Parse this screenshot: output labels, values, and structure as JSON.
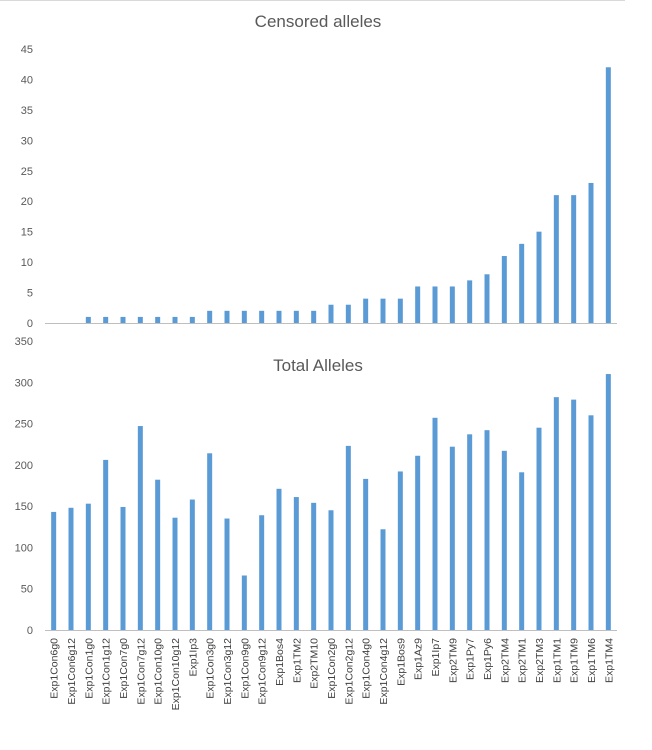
{
  "colors": {
    "bar": "#5b9bd5",
    "grid": "#d9d9d9",
    "axis": "#bfbfbf"
  },
  "chart_data": [
    {
      "type": "bar",
      "title": "Censored alleles",
      "xlabel": "",
      "ylabel": "",
      "ylim": [
        0,
        45
      ],
      "yticks": [
        0,
        5,
        10,
        15,
        20,
        25,
        30,
        35,
        40,
        45
      ],
      "grid": false,
      "legend": "none",
      "categories": [
        "Exp1Con6g0",
        "Exp1Con6g12",
        "Exp1Con1g0",
        "Exp1Con1g12",
        "Exp1Con7g0",
        "Exp1Con7g12",
        "Exp1Con10g0",
        "Exp1Con10g12",
        "Exp1Ip3",
        "Exp1Con3g0",
        "Exp1Con3g12",
        "Exp1Con9g0",
        "Exp1Con9g12",
        "Exp1Bos4",
        "Exp1TM2",
        "Exp2TM10",
        "Exp1Con2g0",
        "Exp1Con2g12",
        "Exp1Con4g0",
        "Exp1Con4g12",
        "Exp1Bos9",
        "Exp1Az9",
        "Exp1Ip7",
        "Exp2TM9",
        "Exp1Py7",
        "Exp1Py6",
        "Exp2TM4",
        "Exp2TM1",
        "Exp2TM3",
        "Exp1TM1",
        "Exp1TM9",
        "Exp1TM6",
        "Exp1TM4"
      ],
      "values": [
        0,
        0,
        1,
        1,
        1,
        1,
        1,
        1,
        1,
        2,
        2,
        2,
        2,
        2,
        2,
        2,
        3,
        3,
        4,
        4,
        4,
        6,
        6,
        6,
        7,
        8,
        11,
        13,
        15,
        21,
        21,
        23,
        42
      ]
    },
    {
      "type": "bar",
      "title": "Total Alleles",
      "xlabel": "",
      "ylabel": "",
      "ylim": [
        0,
        350
      ],
      "yticks": [
        0,
        50,
        100,
        150,
        200,
        250,
        300,
        350
      ],
      "grid": false,
      "legend": "none",
      "categories": [
        "Exp1Con6g0",
        "Exp1Con6g12",
        "Exp1Con1g0",
        "Exp1Con1g12",
        "Exp1Con7g0",
        "Exp1Con7g12",
        "Exp1Con10g0",
        "Exp1Con10g12",
        "Exp1Ip3",
        "Exp1Con3g0",
        "Exp1Con3g12",
        "Exp1Con9g0",
        "Exp1Con9g12",
        "Exp1Bos4",
        "Exp1TM2",
        "Exp2TM10",
        "Exp1Con2g0",
        "Exp1Con2g12",
        "Exp1Con4g0",
        "Exp1Con4g12",
        "Exp1Bos9",
        "Exp1Az9",
        "Exp1Ip7",
        "Exp2TM9",
        "Exp1Py7",
        "Exp1Py6",
        "Exp2TM4",
        "Exp2TM1",
        "Exp2TM3",
        "Exp1TM1",
        "Exp1TM9",
        "Exp1TM6",
        "Exp1TM4"
      ],
      "values": [
        143,
        148,
        153,
        206,
        149,
        247,
        182,
        136,
        158,
        214,
        135,
        66,
        139,
        171,
        161,
        154,
        145,
        223,
        183,
        122,
        192,
        211,
        257,
        222,
        237,
        242,
        217,
        191,
        245,
        282,
        279,
        260,
        310
      ]
    }
  ]
}
